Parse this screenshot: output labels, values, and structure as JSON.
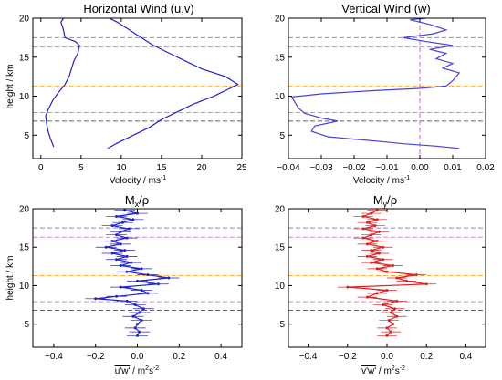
{
  "chart_data": [
    {
      "type": "line",
      "title": "Horizontal Wind (u,v)",
      "xlabel": "Velocity / ms",
      "xlabel_sup": "-1",
      "ylabel": "height / km",
      "xlim": [
        -1,
        25
      ],
      "ylim": [
        2,
        20
      ],
      "xticks": [
        0,
        5,
        10,
        15,
        20,
        25
      ],
      "yticks": [
        5,
        10,
        15,
        20
      ],
      "ref_lines": [
        {
          "y": 17.5,
          "color": "#8888cc"
        },
        {
          "y": 16.3,
          "color": "#cc88cc"
        },
        {
          "y": 11.3,
          "color": "#ffaa33"
        },
        {
          "y": 7.9,
          "color": "#cc88cc"
        },
        {
          "y": 6.8,
          "color": "#666666"
        }
      ],
      "series": [
        {
          "color": "#2222cc",
          "points": [
            [
              1.6,
              3.5
            ],
            [
              1.2,
              4.5
            ],
            [
              0.9,
              5.5
            ],
            [
              0.7,
              6.5
            ],
            [
              0.6,
              7.5
            ],
            [
              1.0,
              8.5
            ],
            [
              1.5,
              9.5
            ],
            [
              2.2,
              10.5
            ],
            [
              3.0,
              11.5
            ],
            [
              3.5,
              12.5
            ],
            [
              3.8,
              13.5
            ],
            [
              4.1,
              14.5
            ],
            [
              4.6,
              15.5
            ],
            [
              4.8,
              16.5
            ],
            [
              4.3,
              17.0
            ],
            [
              3.0,
              17.5
            ],
            [
              2.8,
              18.5
            ],
            [
              2.5,
              19.5
            ],
            [
              2.8,
              20.0
            ]
          ]
        },
        {
          "color": "#2222cc",
          "points": [
            [
              8.3,
              3.3
            ],
            [
              9.5,
              4.0
            ],
            [
              11.5,
              5.0
            ],
            [
              13.5,
              6.0
            ],
            [
              15.0,
              7.0
            ],
            [
              17.0,
              8.0
            ],
            [
              19.0,
              9.0
            ],
            [
              21.5,
              10.0
            ],
            [
              23.5,
              11.0
            ],
            [
              24.5,
              11.5
            ],
            [
              23.0,
              12.5
            ],
            [
              20.0,
              13.5
            ],
            [
              18.0,
              14.5
            ],
            [
              16.0,
              15.5
            ],
            [
              14.0,
              16.5
            ],
            [
              12.5,
              17.5
            ],
            [
              11.0,
              18.5
            ],
            [
              9.5,
              19.5
            ],
            [
              8.5,
              20.0
            ]
          ]
        }
      ]
    },
    {
      "type": "line",
      "title": "Vertical Wind (w)",
      "xlabel": "Velocity / ms",
      "xlabel_sup": "-1",
      "xlim": [
        -0.04,
        0.02
      ],
      "ylim": [
        2,
        20
      ],
      "xticks": [
        -0.04,
        -0.03,
        -0.02,
        -0.01,
        0.0,
        0.01,
        0.02
      ],
      "xtick_labels": [
        "−0.04",
        "−0.03",
        "−0.02",
        "−0.01",
        "0.00",
        "0.01",
        "0.02"
      ],
      "yticks": [
        5,
        10,
        15,
        20
      ],
      "vline": {
        "x": 0.0,
        "color": "#cc66cc"
      },
      "ref_lines": [
        {
          "y": 17.5,
          "color": "#8888cc"
        },
        {
          "y": 16.3,
          "color": "#cc88cc"
        },
        {
          "y": 11.3,
          "color": "#ffaa33"
        },
        {
          "y": 7.9,
          "color": "#cc88cc"
        },
        {
          "y": 6.8,
          "color": "#666666"
        }
      ],
      "series": [
        {
          "color": "#4444dd",
          "points": [
            [
              0.012,
              3.3
            ],
            [
              0.005,
              3.6
            ],
            [
              -0.005,
              3.9
            ],
            [
              -0.012,
              4.2
            ],
            [
              -0.02,
              4.5
            ],
            [
              -0.028,
              4.8
            ],
            [
              -0.033,
              5.5
            ],
            [
              -0.032,
              6.2
            ],
            [
              -0.025,
              6.8
            ],
            [
              -0.03,
              7.2
            ],
            [
              -0.035,
              7.8
            ],
            [
              -0.037,
              8.5
            ],
            [
              -0.038,
              9.2
            ],
            [
              -0.039,
              9.9
            ],
            [
              -0.03,
              10.3
            ],
            [
              -0.015,
              10.7
            ],
            [
              0.0,
              11.0
            ],
            [
              0.008,
              11.3
            ],
            [
              0.01,
              12.0
            ],
            [
              0.012,
              13.0
            ],
            [
              0.007,
              13.6
            ],
            [
              0.01,
              14.2
            ],
            [
              0.005,
              14.8
            ],
            [
              0.008,
              15.5
            ],
            [
              0.003,
              16.0
            ],
            [
              0.01,
              16.5
            ],
            [
              0.002,
              17.0
            ],
            [
              -0.005,
              17.5
            ],
            [
              0.004,
              18.0
            ],
            [
              0.008,
              18.5
            ],
            [
              0.003,
              19.2
            ],
            [
              -0.003,
              19.8
            ],
            [
              0.002,
              20.0
            ]
          ]
        }
      ]
    },
    {
      "type": "scatter",
      "title": "M",
      "title_sub": "x",
      "title_tail": "/ρ",
      "xlabel_main": "u'w'",
      "xlabel_unit": " / m",
      "xlabel_sup1": "2",
      "xlabel_mid": "s",
      "xlabel_sup2": "-2",
      "ylabel": "height / km",
      "xlim": [
        -0.5,
        0.5
      ],
      "ylim": [
        2,
        20
      ],
      "xticks": [
        -0.4,
        -0.2,
        0.0,
        0.2,
        0.4
      ],
      "xtick_labels": [
        "−0.4",
        "−0.2",
        "0.0",
        "0.2",
        "0.4"
      ],
      "yticks": [
        5,
        10,
        15,
        20
      ],
      "ref_lines": [
        {
          "y": 17.5,
          "color": "#8888cc"
        },
        {
          "y": 16.3,
          "color": "#cc88cc"
        },
        {
          "y": 11.3,
          "color": "#ffaa33"
        },
        {
          "y": 7.9,
          "color": "#cc88cc"
        },
        {
          "y": 6.8,
          "color": "#666666"
        }
      ],
      "series": [
        {
          "color": "#2222cc",
          "error": 0.05,
          "points": [
            [
              0.0,
              3.5
            ],
            [
              0.01,
              4.0
            ],
            [
              -0.01,
              4.5
            ],
            [
              0.0,
              5.0
            ],
            [
              0.02,
              5.5
            ],
            [
              -0.02,
              6.0
            ],
            [
              0.01,
              6.5
            ],
            [
              0.03,
              7.0
            ],
            [
              -0.01,
              7.5
            ],
            [
              -0.05,
              8.0
            ],
            [
              -0.2,
              8.3
            ],
            [
              -0.1,
              8.6
            ],
            [
              0.05,
              9.0
            ],
            [
              0.02,
              9.4
            ],
            [
              -0.08,
              9.8
            ],
            [
              0.1,
              10.2
            ],
            [
              0.0,
              10.6
            ],
            [
              0.15,
              11.0
            ],
            [
              0.05,
              11.4
            ],
            [
              -0.05,
              11.8
            ],
            [
              0.02,
              12.2
            ],
            [
              -0.08,
              12.6
            ],
            [
              -0.03,
              13.0
            ],
            [
              -0.1,
              13.4
            ],
            [
              -0.05,
              13.8
            ],
            [
              -0.12,
              14.2
            ],
            [
              -0.06,
              14.6
            ],
            [
              -0.15,
              15.0
            ],
            [
              -0.08,
              15.4
            ],
            [
              -0.12,
              15.8
            ],
            [
              -0.05,
              16.2
            ],
            [
              -0.1,
              16.6
            ],
            [
              -0.08,
              17.0
            ],
            [
              -0.04,
              17.4
            ],
            [
              -0.12,
              17.8
            ],
            [
              -0.07,
              18.2
            ],
            [
              -0.02,
              18.6
            ],
            [
              -0.1,
              19.0
            ],
            [
              0.0,
              19.4
            ],
            [
              -0.06,
              19.8
            ]
          ]
        }
      ]
    },
    {
      "type": "scatter",
      "title": "M",
      "title_sub": "y",
      "title_tail": "/ρ",
      "xlabel_main": "v'w'",
      "xlabel_unit": " / m",
      "xlabel_sup1": "2",
      "xlabel_mid": "s",
      "xlabel_sup2": "-2",
      "xlim": [
        -0.5,
        0.5
      ],
      "ylim": [
        2,
        20
      ],
      "xticks": [
        -0.4,
        -0.2,
        0.0,
        0.2,
        0.4
      ],
      "xtick_labels": [
        "−0.4",
        "−0.2",
        "0.0",
        "0.2",
        "0.4"
      ],
      "yticks": [
        5,
        10,
        15,
        20
      ],
      "ref_lines": [
        {
          "y": 17.5,
          "color": "#8888cc"
        },
        {
          "y": 16.3,
          "color": "#cc88cc"
        },
        {
          "y": 11.3,
          "color": "#ffaa33"
        },
        {
          "y": 7.9,
          "color": "#cc88cc"
        },
        {
          "y": 6.8,
          "color": "#666666"
        }
      ],
      "series": [
        {
          "color": "#dd2222",
          "error": 0.05,
          "points": [
            [
              0.0,
              3.5
            ],
            [
              0.02,
              4.0
            ],
            [
              0.0,
              4.5
            ],
            [
              0.03,
              5.0
            ],
            [
              0.01,
              5.5
            ],
            [
              0.05,
              6.0
            ],
            [
              0.02,
              6.5
            ],
            [
              0.04,
              7.0
            ],
            [
              -0.02,
              7.5
            ],
            [
              0.05,
              8.0
            ],
            [
              -0.1,
              8.5
            ],
            [
              -0.05,
              9.0
            ],
            [
              0.0,
              9.4
            ],
            [
              -0.2,
              9.8
            ],
            [
              0.2,
              10.2
            ],
            [
              0.1,
              10.6
            ],
            [
              0.05,
              11.0
            ],
            [
              0.15,
              11.4
            ],
            [
              0.0,
              11.8
            ],
            [
              -0.05,
              12.2
            ],
            [
              0.03,
              12.6
            ],
            [
              -0.08,
              13.0
            ],
            [
              -0.02,
              13.4
            ],
            [
              -0.1,
              13.8
            ],
            [
              -0.04,
              14.2
            ],
            [
              -0.08,
              14.6
            ],
            [
              -0.02,
              15.0
            ],
            [
              -0.1,
              15.4
            ],
            [
              -0.05,
              15.8
            ],
            [
              -0.12,
              16.2
            ],
            [
              -0.08,
              16.6
            ],
            [
              -0.04,
              17.0
            ],
            [
              -0.12,
              17.4
            ],
            [
              -0.06,
              17.8
            ],
            [
              -0.1,
              18.2
            ],
            [
              -0.05,
              18.6
            ],
            [
              -0.12,
              19.0
            ],
            [
              -0.08,
              19.4
            ],
            [
              -0.05,
              19.8
            ]
          ]
        }
      ]
    }
  ]
}
